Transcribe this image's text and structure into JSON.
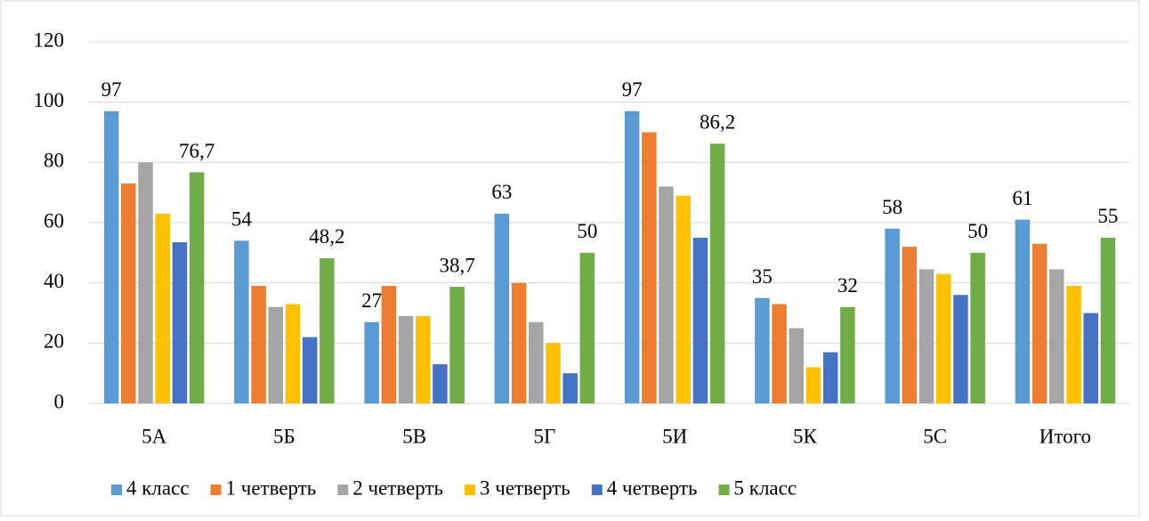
{
  "chart_data": {
    "type": "bar",
    "categories": [
      "5А",
      "5Б",
      "5В",
      "5Г",
      "5И",
      "5К",
      "5С",
      "Итого"
    ],
    "series": [
      {
        "name": "4 класс",
        "color": "#5b9bd5",
        "values": [
          97,
          54,
          27,
          63,
          97,
          35,
          58,
          61
        ],
        "data_labels": true
      },
      {
        "name": "1 четверть",
        "color": "#ed7d31",
        "values": [
          73,
          39,
          39,
          40,
          90,
          33,
          52,
          53
        ]
      },
      {
        "name": "2 четверть",
        "color": "#a5a5a5",
        "values": [
          80,
          32,
          29,
          27,
          72,
          25,
          44.5,
          44.5
        ]
      },
      {
        "name": "3 четверть",
        "color": "#ffc000",
        "values": [
          63,
          33,
          29,
          20,
          69,
          12,
          43,
          39
        ]
      },
      {
        "name": "4 четверть",
        "color": "#4472c4",
        "values": [
          53.5,
          22,
          13,
          10,
          55,
          17,
          36,
          30
        ]
      },
      {
        "name": "5 класс",
        "color": "#70ad47",
        "values": [
          76.7,
          48.2,
          38.7,
          50,
          86.2,
          32,
          50,
          55
        ],
        "data_labels": true,
        "value_labels": [
          "76,7",
          "48,2",
          "38,7",
          "50",
          "86,2",
          "32",
          "50",
          "55"
        ]
      }
    ],
    "ylim": [
      0,
      120
    ],
    "yticks": [
      0,
      20,
      40,
      60,
      80,
      100,
      120
    ],
    "grid": true,
    "legend": "bottom"
  }
}
